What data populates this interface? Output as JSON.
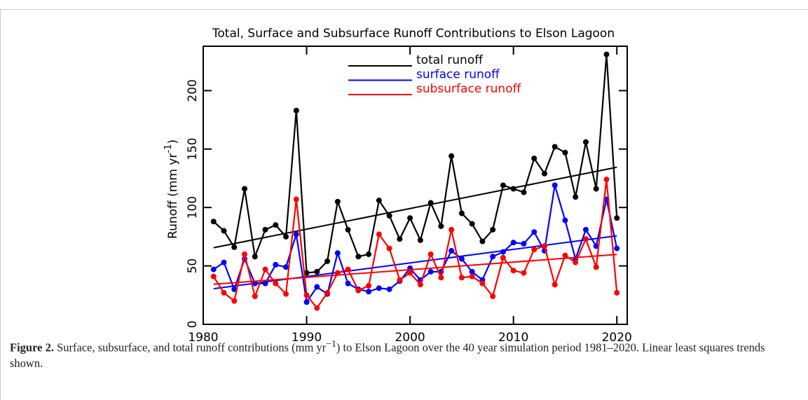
{
  "chart_data": {
    "type": "line",
    "title": "Total, Surface and Subsurface Runoff Contributions to Elson Lagoon",
    "y_label": {
      "text": "Runoff (mm yr",
      "sup": "-1",
      "close": ")"
    },
    "x": [
      1981,
      1982,
      1983,
      1984,
      1985,
      1986,
      1987,
      1988,
      1989,
      1990,
      1991,
      1992,
      1993,
      1994,
      1995,
      1996,
      1997,
      1998,
      1999,
      2000,
      2001,
      2002,
      2003,
      2004,
      2005,
      2006,
      2007,
      2008,
      2009,
      2010,
      2011,
      2012,
      2013,
      2014,
      2015,
      2016,
      2017,
      2018,
      2019,
      2020
    ],
    "series": [
      {
        "name": "total runoff",
        "color": "#000000",
        "values": [
          88,
          80,
          66,
          116,
          58,
          81,
          85,
          75,
          183,
          44,
          45,
          54,
          105,
          81,
          58,
          60,
          106,
          93,
          73,
          91,
          72,
          104,
          84,
          144,
          95,
          86,
          71,
          81,
          119,
          116,
          113,
          142,
          129,
          152,
          147,
          109,
          156,
          116,
          231,
          91
        ]
      },
      {
        "name": "surface runoff",
        "color": "#0000ff",
        "values": [
          47,
          53,
          30,
          56,
          35,
          35,
          51,
          49,
          77,
          19,
          32,
          26,
          61,
          35,
          30,
          28,
          31,
          30,
          37,
          48,
          38,
          45,
          45,
          63,
          56,
          45,
          38,
          58,
          62,
          70,
          69,
          79,
          63,
          119,
          89,
          56,
          81,
          67,
          107,
          65
        ]
      },
      {
        "name": "subsurface runoff",
        "color": "#ff0000",
        "values": [
          41,
          27,
          20,
          60,
          24,
          47,
          35,
          26,
          107,
          25,
          14,
          27,
          44,
          47,
          29,
          33,
          77,
          65,
          38,
          44,
          34,
          60,
          40,
          81,
          40,
          41,
          35,
          24,
          57,
          46,
          44,
          64,
          67,
          34,
          59,
          53,
          73,
          49,
          124,
          27
        ]
      }
    ],
    "trend_lines": true,
    "xlim": [
      1980,
      2021
    ],
    "xticks": [
      1980,
      1990,
      2000,
      2010,
      2020
    ],
    "ylim": [
      0,
      238
    ],
    "yticks": [
      0,
      50,
      100,
      150,
      200
    ],
    "legend": "top"
  },
  "caption": {
    "label": "Figure 2.",
    "text": " Surface, subsurface, and total runoff contributions (mm yr",
    "sup": "−1",
    "rest": ") to Elson Lagoon over the 40 year simulation period 1981–2020. Linear least squares trends shown."
  }
}
